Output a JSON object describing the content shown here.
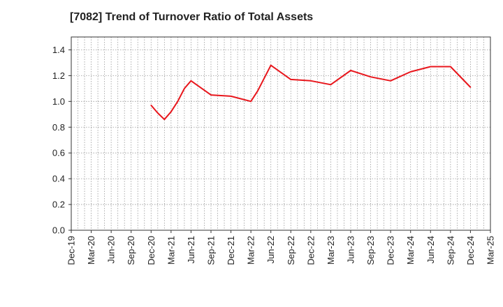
{
  "chart_data": {
    "type": "line",
    "title": "[7082]  Trend of Turnover Ratio of Total Assets",
    "xlabel": "",
    "ylabel": "",
    "ylim": [
      0,
      1.5
    ],
    "yticks": [
      "0.0",
      "0.2",
      "0.4",
      "0.6",
      "0.8",
      "1.0",
      "1.2",
      "1.4"
    ],
    "xticks": [
      "Dec-19",
      "Mar-20",
      "Jun-20",
      "Sep-20",
      "Dec-20",
      "Mar-21",
      "Jun-21",
      "Sep-21",
      "Dec-21",
      "Mar-22",
      "Jun-22",
      "Sep-22",
      "Dec-22",
      "Mar-23",
      "Jun-23",
      "Sep-23",
      "Dec-23",
      "Mar-24",
      "Jun-24",
      "Sep-24",
      "Dec-24",
      "Mar-25"
    ],
    "grid": true,
    "series": [
      {
        "color": "#e8161c",
        "x": [
          "Dec-20",
          "Jan-21",
          "Feb-21",
          "Mar-21",
          "Apr-21",
          "May-21",
          "Jun-21",
          "Sep-21",
          "Dec-21",
          "Mar-22",
          "Apr-22",
          "May-22",
          "Jun-22",
          "Sep-22",
          "Dec-22",
          "Mar-23",
          "Jun-23",
          "Sep-23",
          "Dec-23",
          "Mar-24",
          "Jun-24",
          "Sep-24",
          "Dec-24"
        ],
        "values": [
          0.97,
          0.91,
          0.86,
          0.92,
          1.0,
          1.1,
          1.16,
          1.05,
          1.04,
          1.0,
          1.08,
          1.18,
          1.28,
          1.17,
          1.16,
          1.13,
          1.24,
          1.19,
          1.16,
          1.23,
          1.27,
          1.27,
          1.11
        ]
      }
    ]
  }
}
